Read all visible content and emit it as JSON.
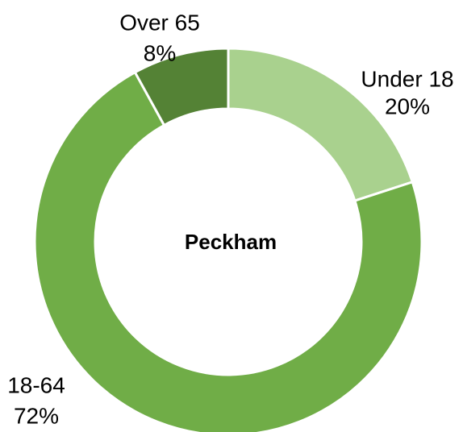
{
  "chart_data": {
    "type": "donut",
    "center_label": "Peckham",
    "categories": [
      "Under 18",
      "18-64",
      "Over 65"
    ],
    "values": [
      20,
      72,
      8
    ],
    "value_labels": [
      "20%",
      "72%",
      "8%"
    ],
    "colors": [
      "#a9d18e",
      "#70ad47",
      "#548235"
    ]
  }
}
